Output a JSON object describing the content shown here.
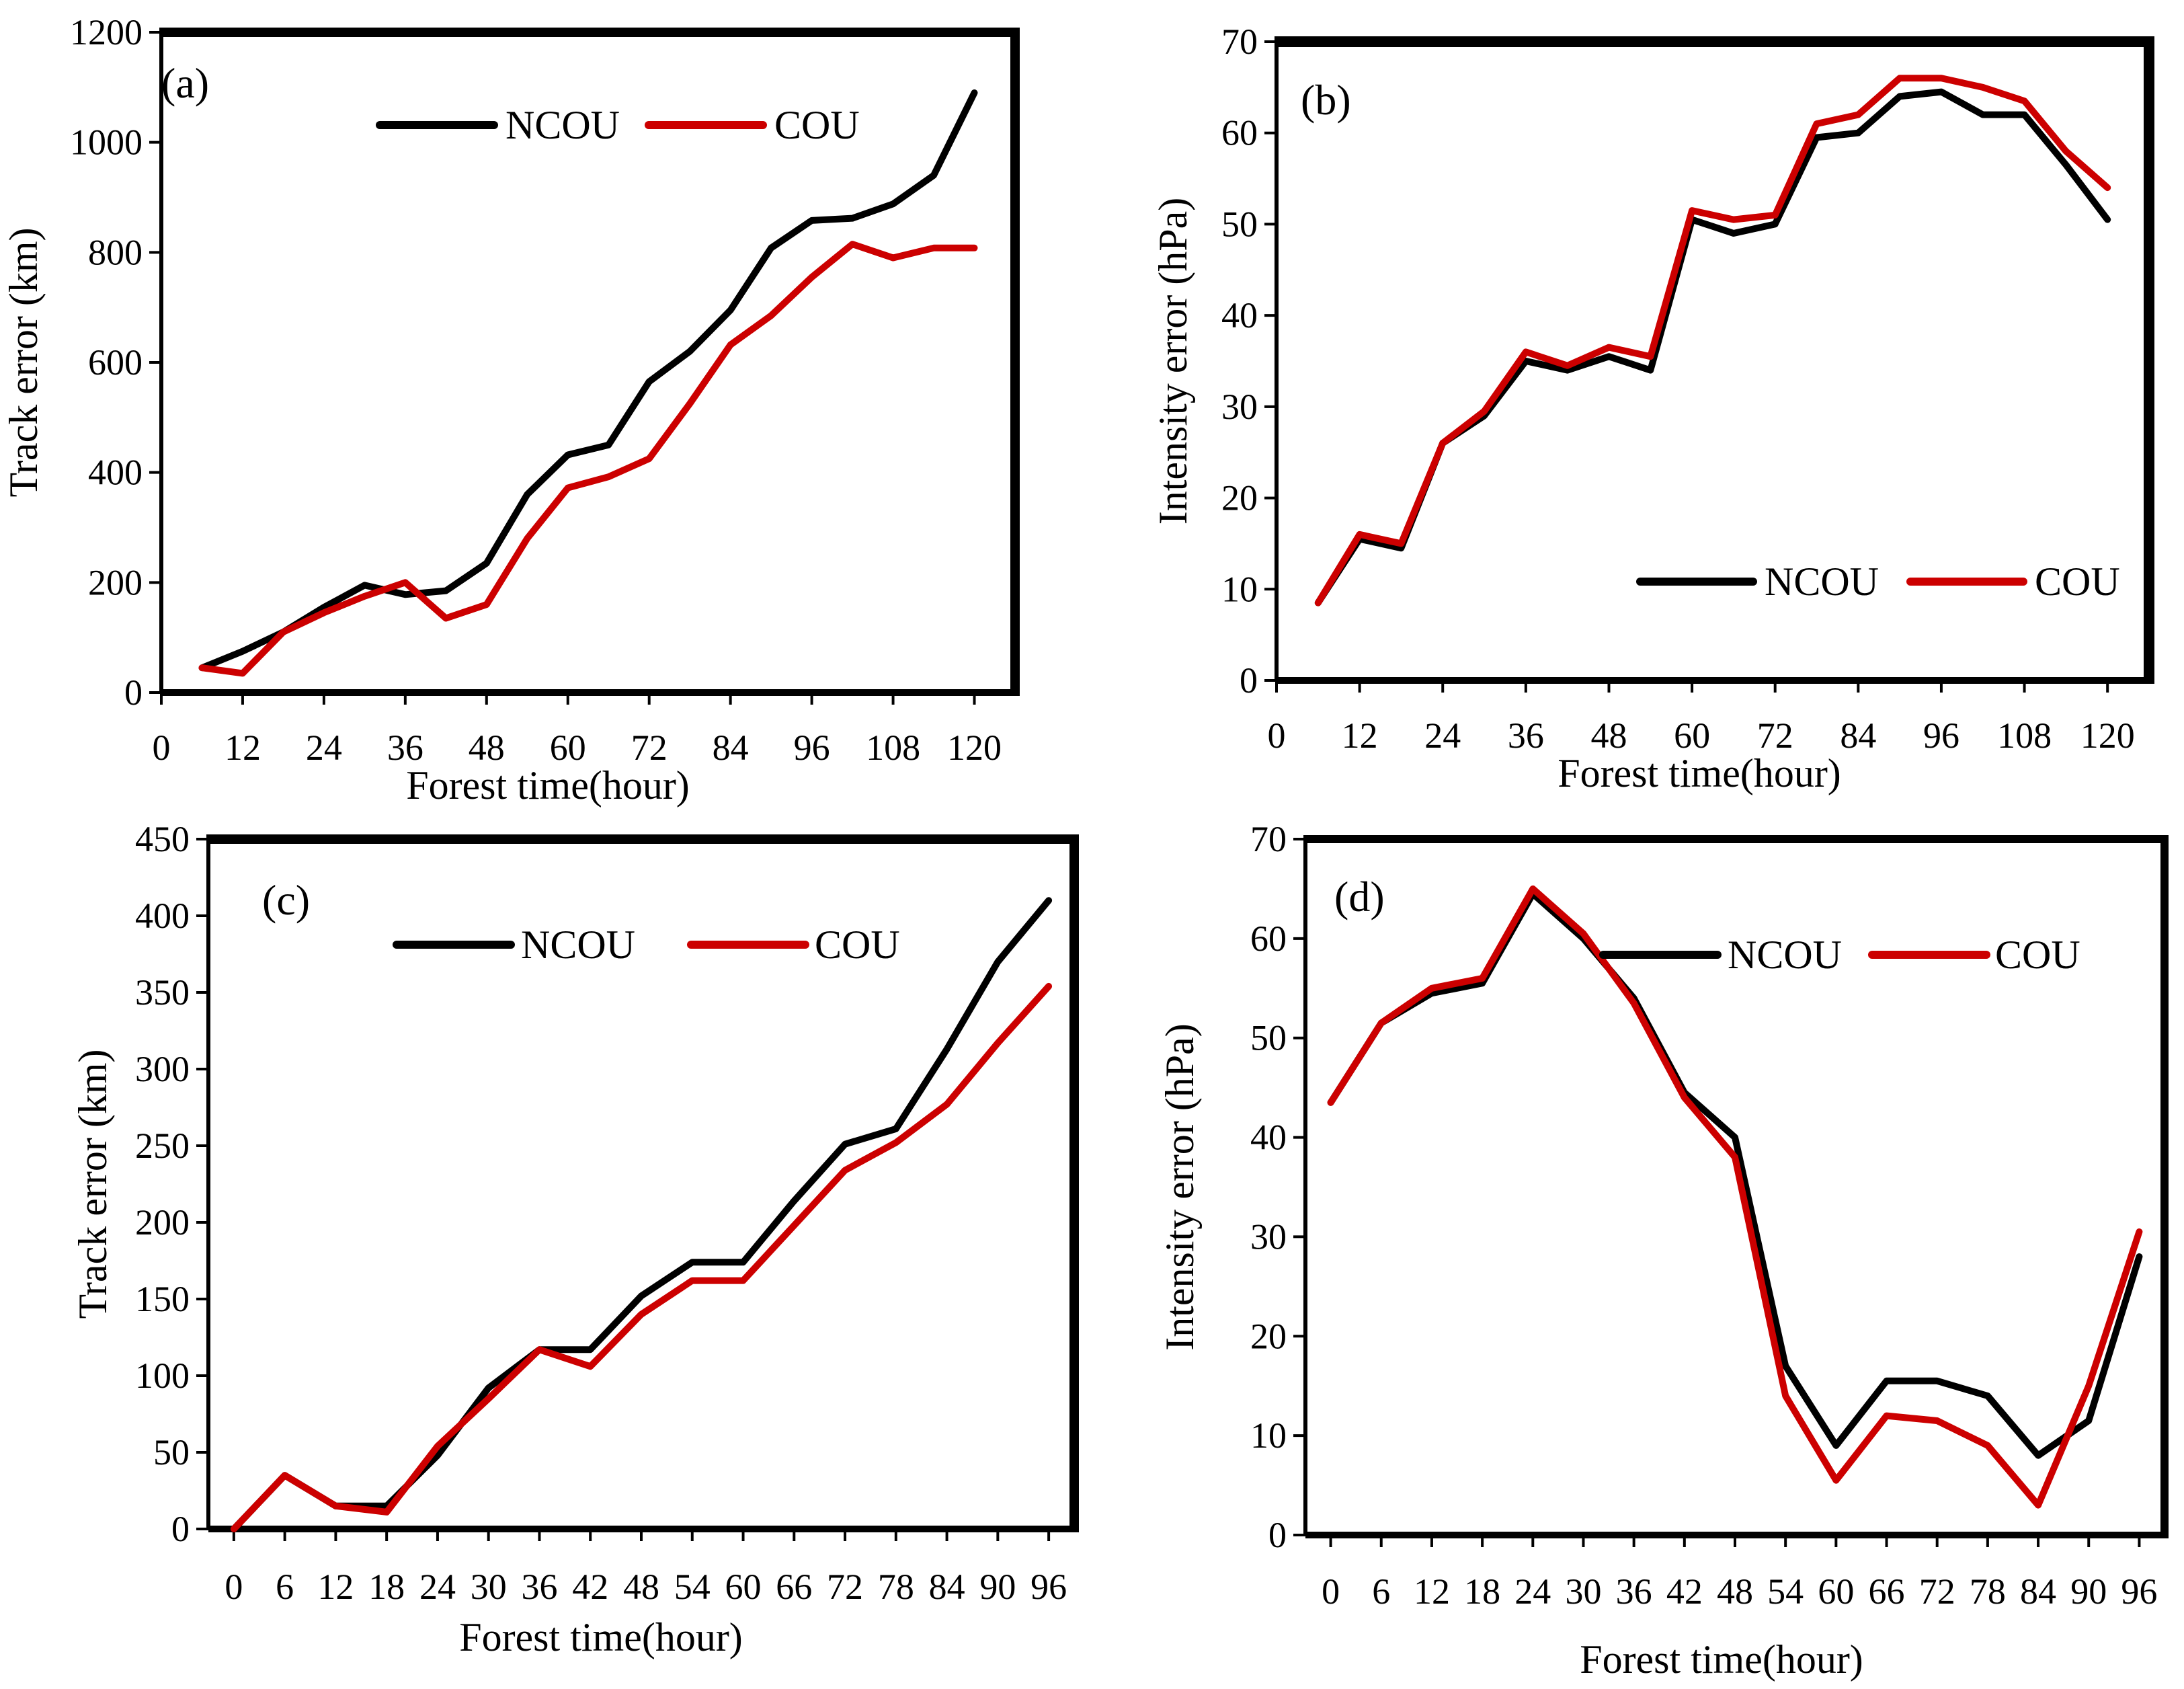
{
  "colors": {
    "ncou": "#000000",
    "cou": "#cc0000",
    "frame": "#000000"
  },
  "chart_data": [
    {
      "panel": "a",
      "label": "(a)",
      "type": "line",
      "xlabel": "Forest time(hour)",
      "ylabel": "Track error (km)",
      "xlim": [
        0,
        126
      ],
      "ylim": [
        0,
        1200
      ],
      "xticks": [
        0,
        12,
        24,
        36,
        48,
        60,
        72,
        84,
        96,
        108,
        120
      ],
      "yticks": [
        0,
        200,
        400,
        600,
        800,
        1000,
        1200
      ],
      "legend": "top",
      "x": [
        6,
        12,
        18,
        24,
        30,
        36,
        42,
        48,
        54,
        60,
        66,
        72,
        78,
        84,
        90,
        96,
        102,
        108,
        114,
        120
      ],
      "series": [
        {
          "name": "NCOU",
          "values": [
            45,
            75,
            110,
            155,
            195,
            178,
            185,
            235,
            360,
            432,
            450,
            565,
            620,
            695,
            808,
            858,
            862,
            888,
            940,
            1090
          ]
        },
        {
          "name": "COU",
          "values": [
            45,
            35,
            110,
            145,
            175,
            200,
            135,
            160,
            280,
            372,
            392,
            425,
            525,
            632,
            685,
            755,
            815,
            790,
            808,
            808
          ]
        }
      ]
    },
    {
      "panel": "b",
      "label": "(b)",
      "type": "line",
      "xlabel": "Forest time(hour)",
      "ylabel": "Intensity error (hPa)",
      "xlim": [
        0,
        126
      ],
      "ylim": [
        0,
        70
      ],
      "xticks": [
        0,
        12,
        24,
        36,
        48,
        60,
        72,
        84,
        96,
        108,
        120
      ],
      "yticks": [
        0,
        10,
        20,
        30,
        40,
        50,
        60,
        70
      ],
      "legend": "bottom-right",
      "x": [
        6,
        12,
        18,
        24,
        30,
        36,
        42,
        48,
        54,
        60,
        66,
        72,
        78,
        84,
        90,
        96,
        102,
        108,
        114,
        120
      ],
      "series": [
        {
          "name": "NCOU",
          "values": [
            8.5,
            15.5,
            14.5,
            26,
            29,
            35,
            34,
            35.5,
            34,
            50.5,
            49,
            50,
            59.5,
            60,
            64,
            64.5,
            62,
            62,
            56.5,
            50.5
          ]
        },
        {
          "name": "COU",
          "values": [
            8.5,
            16,
            15,
            26,
            29.5,
            36,
            34.5,
            36.5,
            35.5,
            51.5,
            50.5,
            51,
            61,
            62,
            66,
            66,
            65,
            63.5,
            58,
            54
          ]
        }
      ]
    },
    {
      "panel": "c",
      "label": "(c)",
      "type": "line",
      "xlabel": "Forest time(hour)",
      "ylabel": "Track error (km)",
      "xlim": [
        -3,
        99
      ],
      "ylim": [
        0,
        450
      ],
      "xticks": [
        0,
        6,
        12,
        18,
        24,
        30,
        36,
        42,
        48,
        54,
        60,
        66,
        72,
        78,
        84,
        90,
        96
      ],
      "yticks": [
        0,
        50,
        100,
        150,
        200,
        250,
        300,
        350,
        400,
        450
      ],
      "legend": "top",
      "x": [
        0,
        6,
        12,
        18,
        24,
        30,
        36,
        42,
        48,
        54,
        60,
        66,
        72,
        78,
        84,
        90,
        96
      ],
      "series": [
        {
          "name": "NCOU",
          "values": [
            0,
            35,
            15,
            15,
            48,
            92,
            117,
            117,
            152,
            174,
            174,
            214,
            251,
            261,
            313,
            370,
            410
          ]
        },
        {
          "name": "COU",
          "values": [
            0,
            35,
            15,
            11,
            54,
            85,
            117,
            106,
            140,
            162,
            162,
            198,
            234,
            252,
            277,
            317,
            354
          ]
        }
      ]
    },
    {
      "panel": "d",
      "label": "(d)",
      "type": "line",
      "xlabel": "Forest time(hour)",
      "ylabel": "Intensity error (hPa)",
      "xlim": [
        -3,
        99
      ],
      "ylim": [
        0,
        70
      ],
      "xticks": [
        0,
        6,
        12,
        18,
        24,
        30,
        36,
        42,
        48,
        54,
        60,
        66,
        72,
        78,
        84,
        90,
        96
      ],
      "yticks": [
        0,
        10,
        20,
        30,
        40,
        50,
        60,
        70
      ],
      "legend": "top",
      "x": [
        0,
        6,
        12,
        18,
        24,
        30,
        36,
        42,
        48,
        54,
        60,
        66,
        72,
        78,
        84,
        90,
        96
      ],
      "series": [
        {
          "name": "NCOU",
          "values": [
            43.5,
            51.5,
            54.5,
            55.5,
            64.5,
            60,
            54,
            44.5,
            40,
            17,
            9,
            15.5,
            15.5,
            14,
            8,
            11.5,
            28
          ]
        },
        {
          "name": "COU",
          "values": [
            43.5,
            51.5,
            55,
            56,
            65,
            60.5,
            53.5,
            44,
            38,
            14,
            5.5,
            12,
            11.5,
            9,
            3,
            15,
            30.5
          ]
        }
      ]
    }
  ]
}
